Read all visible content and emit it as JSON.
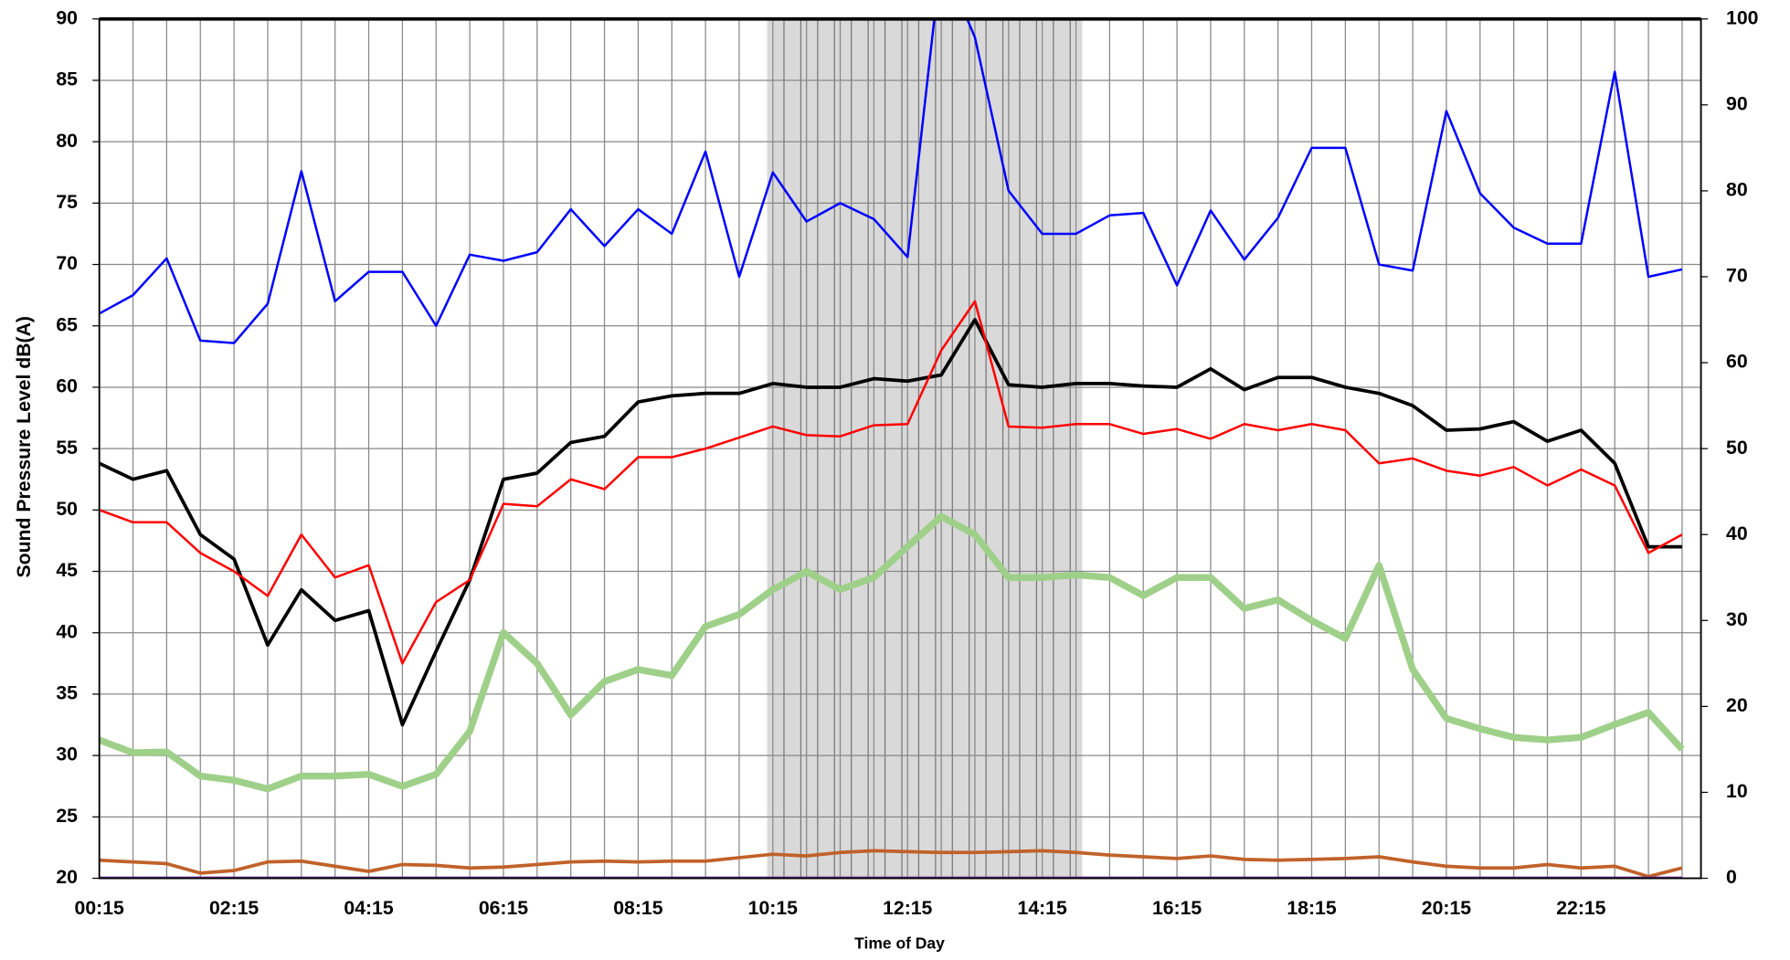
{
  "chart_data": {
    "type": "line",
    "x_label": "Time of Day",
    "y_label": "Sound Pressure Level dB(A)",
    "categories": [
      "00:15",
      null,
      null,
      null,
      "02:15",
      null,
      null,
      null,
      "04:15",
      null,
      null,
      null,
      "06:15",
      null,
      null,
      null,
      "08:15",
      null,
      null,
      null,
      "10:15",
      null,
      null,
      null,
      "12:15",
      null,
      null,
      null,
      "14:15",
      null,
      null,
      null,
      "16:15",
      null,
      null,
      null,
      "18:15",
      null,
      null,
      null,
      "20:15",
      null,
      null,
      null,
      "22:15",
      null,
      null,
      null
    ],
    "ylim": [
      20,
      90
    ],
    "yticks": [
      20,
      25,
      30,
      35,
      40,
      45,
      50,
      55,
      60,
      65,
      70,
      75,
      80,
      85,
      90
    ],
    "y2lim": [
      0,
      100
    ],
    "y2ticks": [
      0,
      10,
      20,
      30,
      40,
      50,
      60,
      70,
      80,
      90,
      100
    ],
    "grid": true,
    "series": [
      {
        "color": "#0000ff",
        "values": [
          66,
          67.5,
          70.5,
          63.8,
          63.6,
          66.8,
          77.6,
          67,
          69.4,
          69.4,
          65,
          70.8,
          70.3,
          71,
          74.5,
          71.5,
          74.5,
          72.5,
          79.2,
          69,
          77.5,
          73.5,
          75,
          73.7,
          70.6,
          95,
          88.5,
          76,
          72.5,
          72.5,
          74,
          74.2,
          68.3,
          74.4,
          70.4,
          73.8,
          79.5,
          79.5,
          70,
          69.5,
          82.5,
          75.8,
          73,
          71.7,
          71.7,
          85.7,
          69,
          69.6
        ]
      },
      {
        "color": "#000000",
        "values": [
          53.8,
          52.5,
          53.2,
          48,
          46,
          39,
          43.5,
          41,
          41.8,
          32.5,
          38.5,
          44.3,
          52.5,
          53,
          55.5,
          56,
          58.8,
          59.3,
          59.5,
          59.5,
          60.3,
          60,
          60,
          60.7,
          60.5,
          61,
          65.5,
          60.2,
          60,
          60.3,
          60.3,
          60.1,
          60,
          61.5,
          59.8,
          60.8,
          60.8,
          60,
          59.5,
          58.5,
          56.5,
          56.6,
          57.2,
          55.6,
          56.5,
          53.8,
          47,
          47
        ]
      },
      {
        "color": "#ff0000",
        "values": [
          50,
          49,
          49,
          46.5,
          45,
          43,
          48,
          44.5,
          45.5,
          37.5,
          42.5,
          44.3,
          50.5,
          50.3,
          52.5,
          51.7,
          54.3,
          54.3,
          55,
          55.9,
          56.8,
          56.1,
          56,
          56.9,
          57,
          63,
          67,
          56.8,
          56.7,
          57,
          57,
          56.2,
          56.6,
          55.8,
          57,
          56.5,
          57,
          56.5,
          53.8,
          54.2,
          53.2,
          52.8,
          53.5,
          52,
          53.3,
          52,
          46.5,
          48
        ]
      },
      {
        "color": "#9fd08a",
        "axis": "y2",
        "values": [
          16.1,
          14.6,
          14.7,
          11.9,
          11.4,
          10.4,
          11.9,
          11.9,
          12.1,
          10.7,
          12.1,
          17.1,
          28.6,
          25,
          19,
          22.9,
          24.3,
          23.6,
          29.3,
          30.7,
          33.6,
          35.7,
          33.6,
          35,
          38.6,
          42.1,
          40,
          35,
          35,
          35.3,
          35,
          32.9,
          35,
          35,
          31.4,
          32.4,
          30,
          27.9,
          36.4,
          24.3,
          18.6,
          17.4,
          16.4,
          16.1,
          16.4,
          17.9,
          19.3,
          15
        ]
      },
      {
        "color": "#c0622a",
        "axis": "y2",
        "values": [
          2.1,
          1.9,
          1.7,
          0.6,
          0.9,
          1.9,
          2,
          1.4,
          0.8,
          1.6,
          1.5,
          1.2,
          1.3,
          1.6,
          1.9,
          2,
          1.9,
          2,
          2,
          2.4,
          2.8,
          2.6,
          3,
          3.2,
          3.1,
          3,
          3,
          3.1,
          3.2,
          3,
          2.7,
          2.5,
          2.3,
          2.6,
          2.2,
          2.1,
          2.2,
          2.3,
          2.5,
          1.9,
          1.4,
          1.2,
          1.2,
          1.6,
          1.2,
          1.4,
          0.2,
          1.2
        ]
      },
      {
        "color": "#7030a0",
        "axis": "y2",
        "values": [
          0,
          0,
          0,
          0,
          0,
          0,
          0,
          0,
          0,
          0,
          0,
          0,
          0,
          0,
          0,
          0,
          0,
          0,
          0,
          0,
          0,
          0,
          0,
          0,
          0,
          0,
          0,
          0,
          0,
          0,
          0,
          0,
          0,
          0,
          0,
          0,
          0,
          0,
          0,
          0,
          0,
          0,
          0,
          0,
          0,
          0,
          0,
          0
        ]
      }
    ]
  }
}
